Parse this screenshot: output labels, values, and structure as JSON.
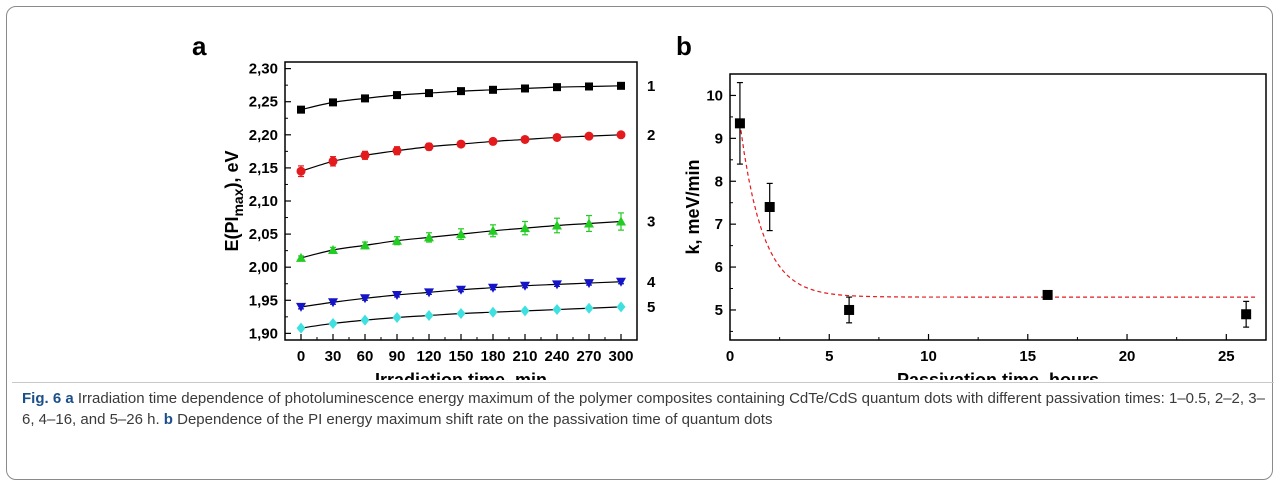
{
  "chart_data": [
    {
      "type": "scatter",
      "title": "a",
      "xlabel": "Irradiation time, min",
      "ylabel": "E(PI",
      "ylabel_sub": "max",
      "ylabel_end": "), eV",
      "xlim": [
        -15,
        315
      ],
      "ylim": [
        1.89,
        2.31
      ],
      "xticks": [
        0,
        30,
        60,
        90,
        120,
        150,
        180,
        210,
        240,
        270,
        300
      ],
      "xtick_labels": [
        "0",
        "30",
        "60",
        "90",
        "120",
        "150",
        "180",
        "210",
        "240",
        "270",
        "300"
      ],
      "yticks": [
        1.9,
        1.95,
        2.0,
        2.05,
        2.1,
        2.15,
        2.2,
        2.25,
        2.3
      ],
      "ytick_labels": [
        "1,90",
        "1,95",
        "2,00",
        "2,05",
        "2,10",
        "2,15",
        "2,20",
        "2,25",
        "2,30"
      ],
      "x": [
        0,
        30,
        60,
        90,
        120,
        150,
        180,
        210,
        240,
        270,
        300
      ],
      "series": [
        {
          "name": "1",
          "marker": "square",
          "color": "#000000",
          "values": [
            2.238,
            2.249,
            2.255,
            2.26,
            2.263,
            2.266,
            2.268,
            2.27,
            2.272,
            2.273,
            2.274
          ],
          "errors": [
            0.003,
            0.003,
            0.003,
            0.003,
            0.003,
            0.003,
            0.003,
            0.003,
            0.003,
            0.003,
            0.003
          ]
        },
        {
          "name": "2",
          "marker": "circle",
          "color": "#e41a1c",
          "values": [
            2.145,
            2.16,
            2.169,
            2.176,
            2.182,
            2.186,
            2.19,
            2.193,
            2.196,
            2.198,
            2.2
          ],
          "errors": [
            0.008,
            0.007,
            0.006,
            0.006,
            0.005,
            0.004,
            0.004,
            0.003,
            0.003,
            0.003,
            0.003
          ]
        },
        {
          "name": "3",
          "marker": "triangle-up",
          "color": "#22cc22",
          "values": [
            2.014,
            2.026,
            2.033,
            2.04,
            2.045,
            2.05,
            2.055,
            2.059,
            2.063,
            2.066,
            2.069
          ],
          "errors": [
            0.003,
            0.004,
            0.005,
            0.006,
            0.007,
            0.008,
            0.009,
            0.01,
            0.011,
            0.012,
            0.013
          ]
        },
        {
          "name": "4",
          "marker": "triangle-down",
          "color": "#1515c8",
          "values": [
            1.94,
            1.947,
            1.953,
            1.958,
            1.962,
            1.966,
            1.969,
            1.972,
            1.974,
            1.976,
            1.978
          ],
          "errors": [
            0.003,
            0.003,
            0.003,
            0.003,
            0.003,
            0.003,
            0.003,
            0.003,
            0.003,
            0.003,
            0.003
          ]
        },
        {
          "name": "5",
          "marker": "diamond",
          "color": "#40e0e0",
          "values": [
            1.908,
            1.915,
            1.92,
            1.924,
            1.927,
            1.93,
            1.932,
            1.934,
            1.936,
            1.938,
            1.94
          ],
          "errors": [
            0.002,
            0.002,
            0.002,
            0.002,
            0.002,
            0.002,
            0.002,
            0.002,
            0.002,
            0.002,
            0.002
          ]
        }
      ],
      "fit_color": "#000000",
      "grid": false
    },
    {
      "type": "scatter",
      "title": "b",
      "xlabel": "Passivation time, hours",
      "ylabel": "k, meV/min",
      "xlim": [
        0,
        27
      ],
      "ylim": [
        4.3,
        10.5
      ],
      "xticks": [
        0,
        5,
        10,
        15,
        20,
        25
      ],
      "xtick_labels": [
        "0",
        "5",
        "10",
        "15",
        "20",
        "25"
      ],
      "yticks": [
        5,
        6,
        7,
        8,
        9,
        10
      ],
      "ytick_labels": [
        "5",
        "6",
        "7",
        "8",
        "9",
        "10"
      ],
      "points": [
        {
          "x": 0.5,
          "y": 9.35,
          "err": 0.95
        },
        {
          "x": 2,
          "y": 7.4,
          "err": 0.55
        },
        {
          "x": 6,
          "y": 5.0,
          "err": 0.3
        },
        {
          "x": 16,
          "y": 5.35,
          "err": 0.05
        },
        {
          "x": 26,
          "y": 4.9,
          "err": 0.3
        }
      ],
      "fit": {
        "style": "dashed",
        "color": "#e41a1c",
        "plateau": 5.3,
        "start_x": 0.5,
        "start_y": 9.35,
        "decay": 1.15
      },
      "marker": "square",
      "grid": false
    }
  ],
  "caption": {
    "fig_label": "Fig. 6",
    "part_a": "a",
    "text_a": " Irradiation time dependence of photoluminescence energy maximum of the polymer composites containing CdTe/CdS quantum dots with different passivation times: 1–0.5, 2–2, 3–6, 4–16, and 5–26 h. ",
    "part_b": "b",
    "text_b": " Dependence of the PI energy maximum shift rate on the passivation time of quantum dots"
  }
}
